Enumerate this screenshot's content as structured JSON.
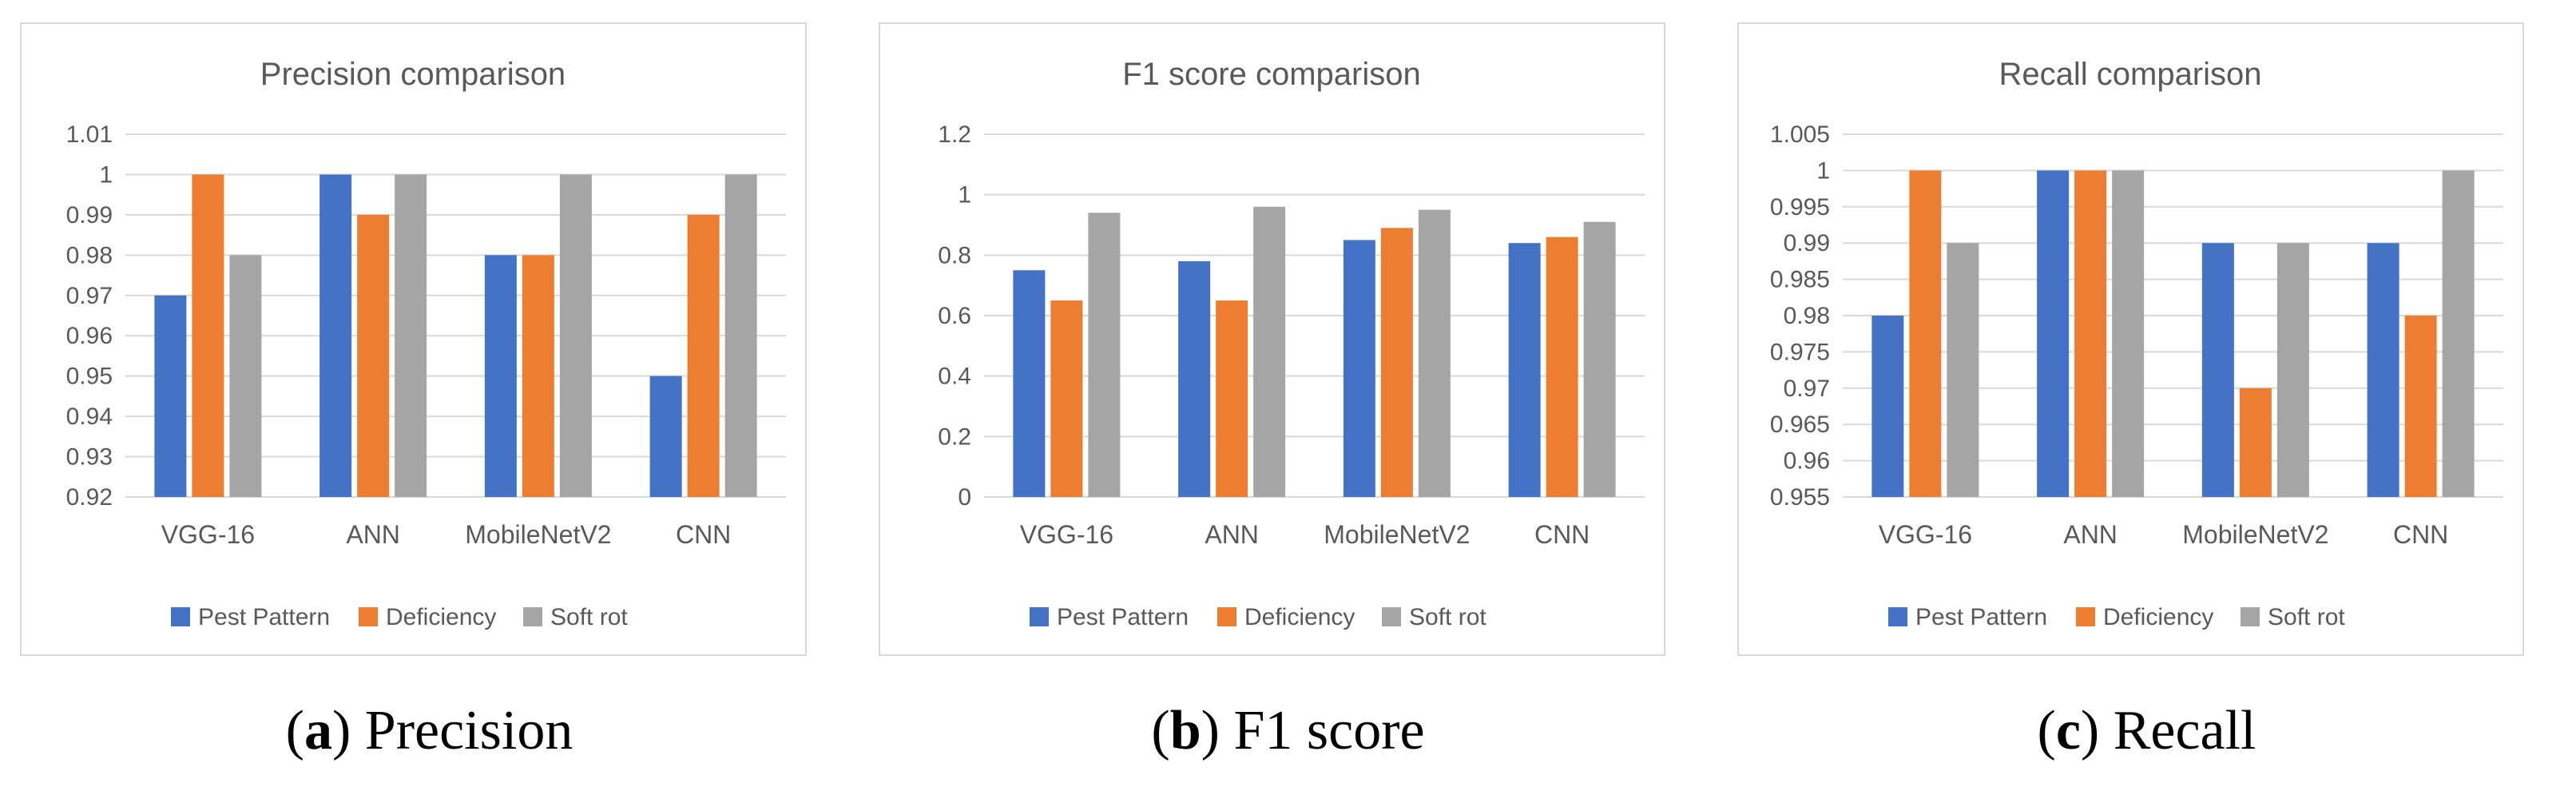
{
  "colors": {
    "pest": "#4472C4",
    "deficiency": "#ED7D31",
    "softrot": "#A5A5A5",
    "grid": "#d9d9d9",
    "text": "#595959",
    "title": "#595959"
  },
  "panels": [
    {
      "caption": {
        "letter": "a",
        "text": " Precision"
      },
      "tick_labels": [
        "0.92",
        "0.93",
        "0.94",
        "0.95",
        "0.96",
        "0.97",
        "0.98",
        "0.99",
        "1",
        "1.01"
      ]
    },
    {
      "caption": {
        "letter": "b",
        "text": " F1 score"
      },
      "tick_labels": [
        "0",
        "0.2",
        "0.4",
        "0.6",
        "0.8",
        "1",
        "1.2"
      ]
    },
    {
      "caption": {
        "letter": "c",
        "text": " Recall"
      },
      "tick_labels": [
        "0.955",
        "0.96",
        "0.965",
        "0.97",
        "0.975",
        "0.98",
        "0.985",
        "0.99",
        "0.995",
        "1",
        "1.005"
      ]
    }
  ],
  "chart_data": [
    {
      "type": "bar",
      "title": "Precision comparison",
      "categories": [
        "VGG-16",
        "ANN",
        "MobileNetV2",
        "CNN"
      ],
      "series": [
        {
          "name": "Pest Pattern",
          "values": [
            0.97,
            1.0,
            0.98,
            0.95
          ]
        },
        {
          "name": "Deficiency",
          "values": [
            1.0,
            0.99,
            0.98,
            0.99
          ]
        },
        {
          "name": "Soft rot",
          "values": [
            0.98,
            1.0,
            1.0,
            1.0
          ]
        }
      ],
      "xlabel": "",
      "ylabel": "",
      "ylim": [
        0.92,
        1.01
      ],
      "ystep": 0.01,
      "grid": true,
      "legend": "bottom"
    },
    {
      "type": "bar",
      "title": "F1 score comparison",
      "categories": [
        "VGG-16",
        "ANN",
        "MobileNetV2",
        "CNN"
      ],
      "series": [
        {
          "name": "Pest Pattern",
          "values": [
            0.75,
            0.78,
            0.85,
            0.84
          ]
        },
        {
          "name": "Deficiency",
          "values": [
            0.65,
            0.65,
            0.89,
            0.86
          ]
        },
        {
          "name": "Soft rot",
          "values": [
            0.94,
            0.96,
            0.95,
            0.91
          ]
        }
      ],
      "xlabel": "",
      "ylabel": "",
      "ylim": [
        0,
        1.2
      ],
      "ystep": 0.2,
      "grid": true,
      "legend": "bottom"
    },
    {
      "type": "bar",
      "title": "Recall comparison",
      "categories": [
        "VGG-16",
        "ANN",
        "MobileNetV2",
        "CNN"
      ],
      "series": [
        {
          "name": "Pest Pattern",
          "values": [
            0.98,
            1.0,
            0.99,
            0.99
          ]
        },
        {
          "name": "Deficiency",
          "values": [
            1.0,
            1.0,
            0.97,
            0.98
          ]
        },
        {
          "name": "Soft rot",
          "values": [
            0.99,
            1.0,
            0.99,
            1.0
          ]
        }
      ],
      "xlabel": "",
      "ylabel": "",
      "ylim": [
        0.955,
        1.005
      ],
      "ystep": 0.005,
      "grid": true,
      "legend": "bottom"
    }
  ]
}
